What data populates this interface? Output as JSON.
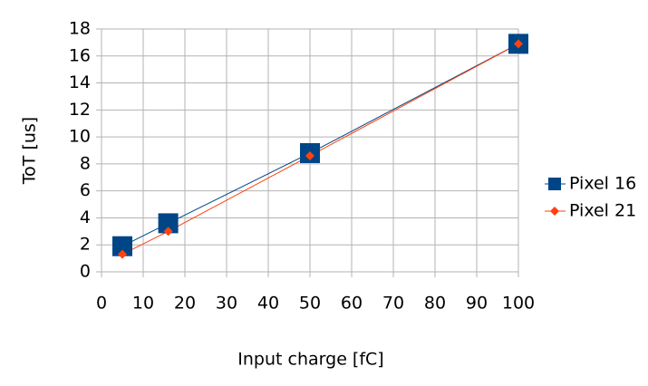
{
  "chart_data": {
    "type": "line",
    "x_label": "Input charge [fC]",
    "y_label": "ToT [us]",
    "x": [
      5,
      16,
      50,
      100
    ],
    "series": [
      {
        "name": "Pixel 16",
        "color": "#004586",
        "marker": "square",
        "values": [
          1.9,
          3.6,
          8.8,
          16.9
        ]
      },
      {
        "name": "Pixel 21",
        "color": "#ff420e",
        "marker": "diamond",
        "values": [
          1.3,
          3.0,
          8.6,
          16.9
        ]
      }
    ],
    "xlim": [
      0,
      100
    ],
    "xticks": [
      0,
      10,
      20,
      30,
      40,
      50,
      60,
      70,
      80,
      90,
      100
    ],
    "ylim": [
      0,
      18
    ],
    "yticks": [
      0,
      2,
      4,
      6,
      8,
      10,
      12,
      14,
      16,
      18
    ],
    "grid": true,
    "legend": "right"
  }
}
